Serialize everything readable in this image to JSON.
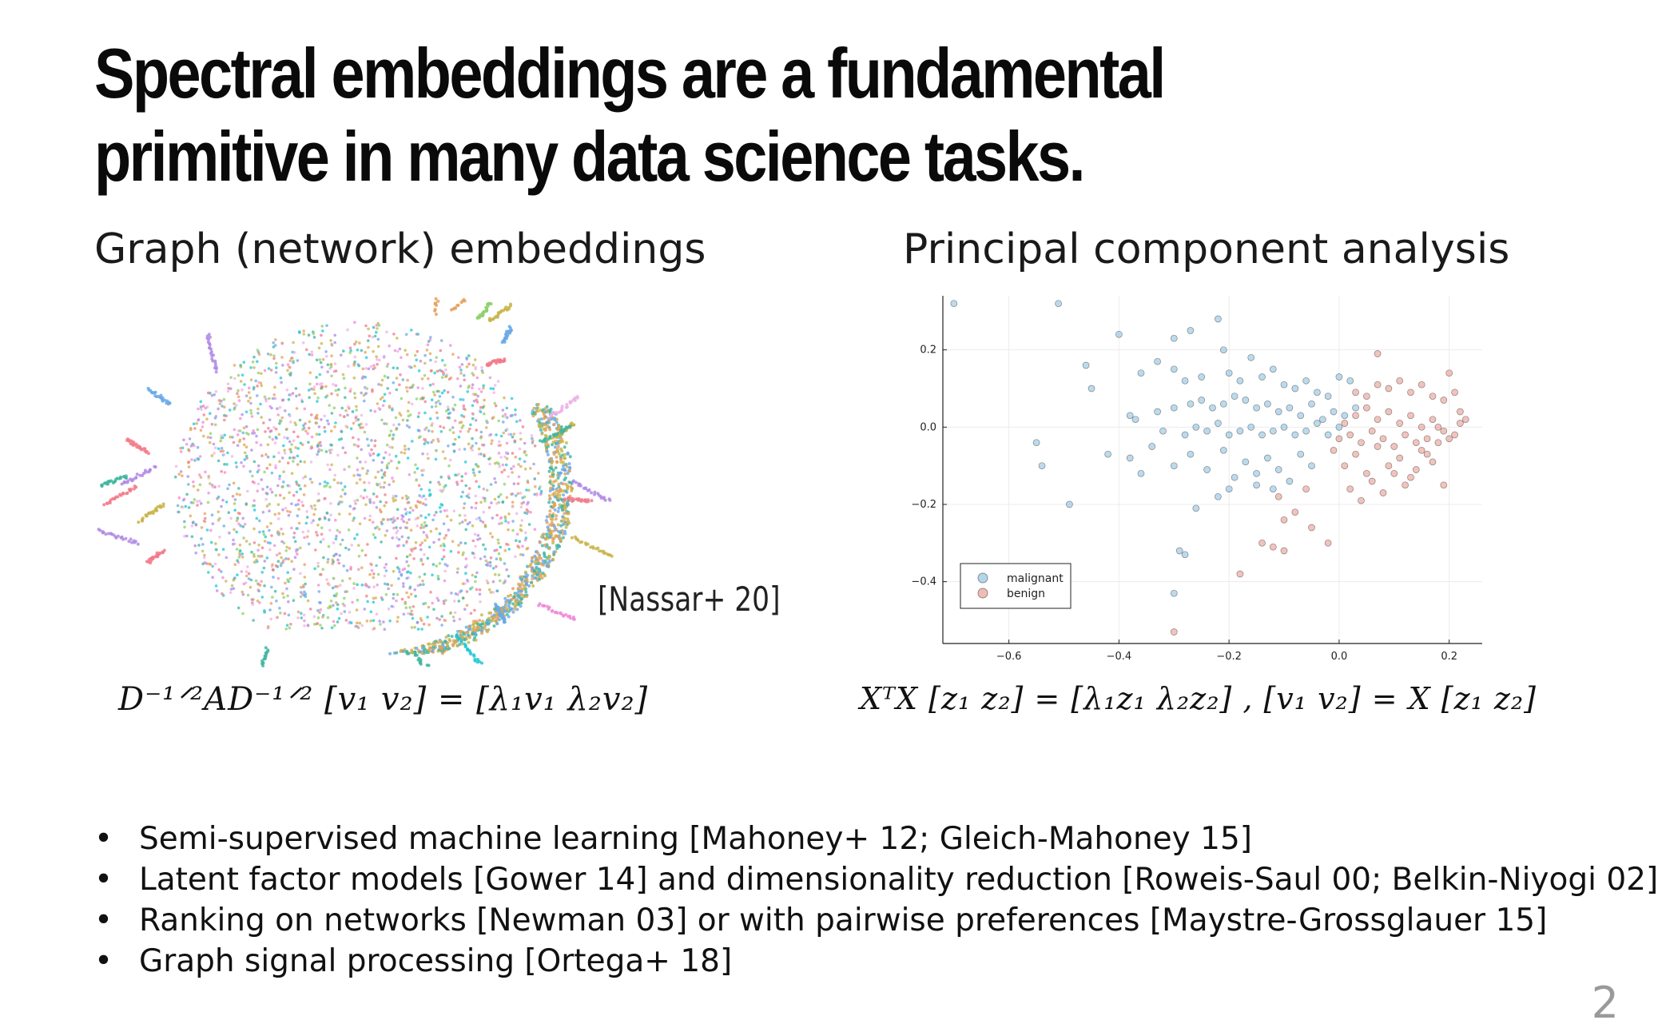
{
  "slide": {
    "title": "Spectral embeddings are a fundamental primitive in many data science tasks.",
    "left_heading": "Graph (network) embeddings",
    "right_heading": "Principal component analysis",
    "citation": "[Nassar+ 20]",
    "page_number": "2"
  },
  "equations": {
    "graph": "D⁻¹ᐟ²AD⁻¹ᐟ² [v₁  v₂] = [λ₁v₁  λ₂v₂]",
    "pca": "XᵀX [z₁  z₂] = [λ₁z₁  λ₂z₂] , [v₁  v₂] = X [z₁  z₂]"
  },
  "graph_embedding": {
    "palette": [
      "#f08ad8",
      "#e5a05a",
      "#3fb6a0",
      "#6aa9e8",
      "#8ed06a",
      "#1fc7d8",
      "#c9b44a",
      "#f27a8a",
      "#b08ae6",
      "#f0b0e8"
    ]
  },
  "bullets": [
    "Semi-supervised machine learning [Mahoney+ 12; Gleich-Mahoney 15]",
    "Latent factor models [Gower 14] and dimensionality reduction [Roweis-Saul 00; Belkin-Niyogi 02]",
    "Ranking on networks [Newman 03] or with pairwise preferences [Maystre-Grossglauer 15]",
    "Graph signal processing [Ortega+ 18]"
  ],
  "chart_data": {
    "type": "scatter",
    "xlim": [
      -0.72,
      0.26
    ],
    "ylim": [
      -0.56,
      0.34
    ],
    "xticks": [
      -0.6,
      -0.4,
      -0.2,
      0.0,
      0.2
    ],
    "yticks": [
      0.2,
      0.0,
      -0.2,
      -0.4
    ],
    "xtick_labels": [
      "−0.6",
      "−0.4",
      "−0.2",
      "0.0",
      "0.2"
    ],
    "ytick_labels": [
      "0.2",
      "0.0",
      "−0.2",
      "−0.4"
    ],
    "grid": true,
    "legend_position": "bottom-left",
    "series": [
      {
        "name": "malignant",
        "color": "#6aaed6",
        "points": [
          [
            -0.7,
            0.32
          ],
          [
            -0.51,
            0.32
          ],
          [
            -0.4,
            0.24
          ],
          [
            -0.3,
            0.23
          ],
          [
            -0.27,
            0.25
          ],
          [
            -0.22,
            0.28
          ],
          [
            -0.46,
            0.16
          ],
          [
            -0.45,
            0.1
          ],
          [
            -0.36,
            0.14
          ],
          [
            -0.33,
            0.17
          ],
          [
            -0.3,
            0.15
          ],
          [
            -0.28,
            0.12
          ],
          [
            -0.25,
            0.13
          ],
          [
            -0.21,
            0.2
          ],
          [
            -0.2,
            0.14
          ],
          [
            -0.18,
            0.12
          ],
          [
            -0.16,
            0.18
          ],
          [
            -0.14,
            0.13
          ],
          [
            -0.12,
            0.15
          ],
          [
            -0.1,
            0.11
          ],
          [
            -0.08,
            0.1
          ],
          [
            -0.06,
            0.12
          ],
          [
            -0.04,
            0.09
          ],
          [
            -0.02,
            0.08
          ],
          [
            0.0,
            0.13
          ],
          [
            0.02,
            0.12
          ],
          [
            -0.38,
            0.03
          ],
          [
            -0.37,
            0.02
          ],
          [
            -0.33,
            0.04
          ],
          [
            -0.3,
            0.05
          ],
          [
            -0.27,
            0.06
          ],
          [
            -0.25,
            0.07
          ],
          [
            -0.23,
            0.05
          ],
          [
            -0.21,
            0.06
          ],
          [
            -0.19,
            0.08
          ],
          [
            -0.17,
            0.07
          ],
          [
            -0.15,
            0.05
          ],
          [
            -0.13,
            0.06
          ],
          [
            -0.11,
            0.04
          ],
          [
            -0.09,
            0.05
          ],
          [
            -0.07,
            0.03
          ],
          [
            -0.05,
            0.06
          ],
          [
            -0.03,
            0.02
          ],
          [
            -0.01,
            0.04
          ],
          [
            0.01,
            0.03
          ],
          [
            0.03,
            0.05
          ],
          [
            -0.32,
            -0.01
          ],
          [
            -0.28,
            -0.02
          ],
          [
            -0.26,
            0.0
          ],
          [
            -0.24,
            -0.01
          ],
          [
            -0.22,
            0.01
          ],
          [
            -0.2,
            -0.02
          ],
          [
            -0.18,
            -0.01
          ],
          [
            -0.16,
            0.0
          ],
          [
            -0.14,
            -0.02
          ],
          [
            -0.12,
            -0.01
          ],
          [
            -0.1,
            0.0
          ],
          [
            -0.08,
            -0.02
          ],
          [
            -0.06,
            -0.01
          ],
          [
            -0.04,
            0.01
          ],
          [
            -0.02,
            -0.02
          ],
          [
            0.0,
            0.0
          ],
          [
            -0.38,
            -0.08
          ],
          [
            -0.36,
            -0.12
          ],
          [
            -0.34,
            -0.05
          ],
          [
            -0.3,
            -0.1
          ],
          [
            -0.27,
            -0.07
          ],
          [
            -0.24,
            -0.11
          ],
          [
            -0.21,
            -0.06
          ],
          [
            -0.19,
            -0.13
          ],
          [
            -0.17,
            -0.09
          ],
          [
            -0.15,
            -0.12
          ],
          [
            -0.13,
            -0.08
          ],
          [
            -0.11,
            -0.11
          ],
          [
            -0.09,
            -0.14
          ],
          [
            -0.07,
            -0.07
          ],
          [
            -0.05,
            -0.1
          ],
          [
            -0.55,
            -0.04
          ],
          [
            -0.54,
            -0.1
          ],
          [
            -0.49,
            -0.2
          ],
          [
            -0.42,
            -0.07
          ],
          [
            -0.29,
            -0.32
          ],
          [
            -0.28,
            -0.33
          ],
          [
            -0.26,
            -0.21
          ],
          [
            -0.22,
            -0.18
          ],
          [
            -0.2,
            -0.16
          ],
          [
            -0.3,
            -0.43
          ],
          [
            -0.15,
            -0.15
          ],
          [
            -0.12,
            -0.16
          ]
        ]
      },
      {
        "name": "benign",
        "color": "#e07a6a",
        "points": [
          [
            0.07,
            0.19
          ],
          [
            0.2,
            0.14
          ],
          [
            0.22,
            0.01
          ],
          [
            0.21,
            -0.02
          ],
          [
            0.19,
            -0.15
          ],
          [
            0.17,
            -0.09
          ],
          [
            0.15,
            -0.06
          ],
          [
            0.13,
            -0.13
          ],
          [
            0.11,
            -0.08
          ],
          [
            0.09,
            -0.1
          ],
          [
            0.07,
            -0.05
          ],
          [
            0.05,
            -0.12
          ],
          [
            0.03,
            -0.07
          ],
          [
            0.01,
            -0.1
          ],
          [
            -0.01,
            -0.06
          ],
          [
            0.02,
            -0.16
          ],
          [
            0.04,
            -0.19
          ],
          [
            0.06,
            -0.14
          ],
          [
            0.08,
            -0.17
          ],
          [
            0.1,
            -0.12
          ],
          [
            0.12,
            -0.15
          ],
          [
            0.14,
            -0.11
          ],
          [
            0.16,
            -0.07
          ],
          [
            0.18,
            -0.04
          ],
          [
            0.2,
            -0.03
          ],
          [
            0.22,
            0.04
          ],
          [
            0.23,
            0.02
          ],
          [
            0.03,
            0.09
          ],
          [
            0.05,
            0.08
          ],
          [
            0.07,
            0.11
          ],
          [
            0.09,
            0.1
          ],
          [
            0.11,
            0.12
          ],
          [
            0.13,
            0.09
          ],
          [
            0.15,
            0.11
          ],
          [
            0.17,
            0.08
          ],
          [
            0.19,
            0.07
          ],
          [
            0.21,
            0.09
          ],
          [
            0.03,
            0.03
          ],
          [
            0.05,
            0.05
          ],
          [
            0.07,
            0.02
          ],
          [
            0.09,
            0.04
          ],
          [
            0.11,
            0.01
          ],
          [
            0.13,
            0.03
          ],
          [
            0.15,
            0.0
          ],
          [
            0.17,
            0.02
          ],
          [
            0.19,
            -0.01
          ],
          [
            0.01,
            0.01
          ],
          [
            0.0,
            -0.03
          ],
          [
            0.02,
            -0.02
          ],
          [
            0.04,
            -0.04
          ],
          [
            0.06,
            -0.01
          ],
          [
            0.08,
            -0.03
          ],
          [
            0.1,
            -0.05
          ],
          [
            0.12,
            -0.02
          ],
          [
            0.14,
            -0.04
          ],
          [
            0.16,
            -0.03
          ],
          [
            0.18,
            0.0
          ],
          [
            -0.06,
            -0.16
          ],
          [
            -0.08,
            -0.22
          ],
          [
            -0.1,
            -0.24
          ],
          [
            -0.11,
            -0.18
          ],
          [
            -0.14,
            -0.3
          ],
          [
            -0.12,
            -0.31
          ],
          [
            -0.05,
            -0.26
          ],
          [
            -0.02,
            -0.3
          ],
          [
            -0.1,
            -0.32
          ],
          [
            -0.18,
            -0.38
          ],
          [
            -0.3,
            -0.53
          ]
        ]
      }
    ]
  }
}
